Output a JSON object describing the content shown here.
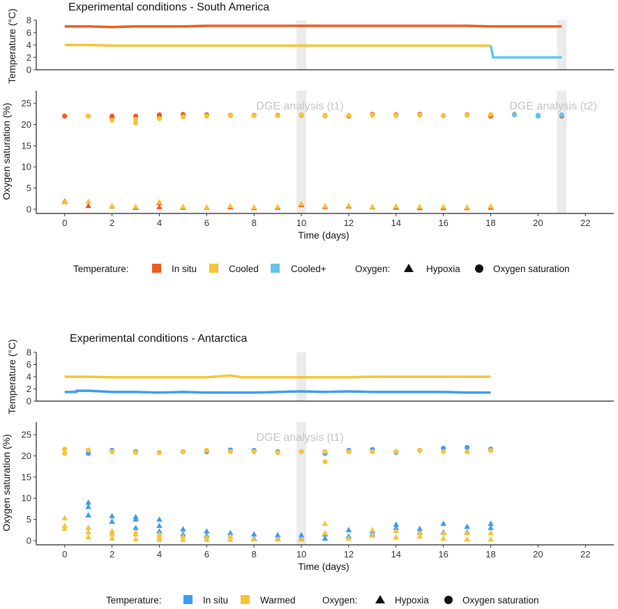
{
  "chart_data": [
    {
      "type": "line",
      "panel": "south-temp",
      "title": "Experimental conditions - South America",
      "xlabel": "",
      "ylabel": "Temperature (°C)",
      "xlim": [
        -1.2,
        23.2
      ],
      "ylim": [
        0,
        8
      ],
      "yticks": [
        0,
        2,
        4,
        6,
        8
      ],
      "series": [
        {
          "name": "In situ",
          "color": "#EE5A1F",
          "points": [
            [
              0,
              7.0
            ],
            [
              1,
              7.0
            ],
            [
              2,
              6.9
            ],
            [
              3,
              7.0
            ],
            [
              4,
              7.0
            ],
            [
              5,
              7.0
            ],
            [
              6,
              7.1
            ],
            [
              7,
              7.1
            ],
            [
              8,
              7.1
            ],
            [
              9,
              7.1
            ],
            [
              10,
              7.1
            ],
            [
              11,
              7.1
            ],
            [
              12,
              7.1
            ],
            [
              13,
              7.1
            ],
            [
              14,
              7.1
            ],
            [
              15,
              7.1
            ],
            [
              16,
              7.1
            ],
            [
              17,
              7.1
            ],
            [
              18,
              7.0
            ],
            [
              19,
              7.0
            ],
            [
              20,
              7.0
            ],
            [
              21,
              7.0
            ]
          ]
        },
        {
          "name": "Cooled",
          "color": "#F5C437",
          "points": [
            [
              0,
              4.0
            ],
            [
              1,
              4.0
            ],
            [
              2,
              3.9
            ],
            [
              3,
              3.9
            ],
            [
              4,
              3.9
            ],
            [
              5,
              3.9
            ],
            [
              6,
              3.9
            ],
            [
              7,
              3.9
            ],
            [
              8,
              3.9
            ],
            [
              9,
              3.9
            ],
            [
              10,
              3.9
            ],
            [
              11,
              3.9
            ],
            [
              12,
              3.9
            ],
            [
              13,
              3.9
            ],
            [
              14,
              3.9
            ],
            [
              15,
              3.9
            ],
            [
              16,
              3.9
            ],
            [
              17,
              3.9
            ],
            [
              18,
              3.9
            ]
          ]
        },
        {
          "name": "Cooled+",
          "color": "#62C3EE",
          "points": [
            [
              18.0,
              3.9
            ],
            [
              18.1,
              2.0
            ],
            [
              19,
              2.0
            ],
            [
              20,
              2.0
            ],
            [
              21,
              2.0
            ]
          ]
        }
      ],
      "highlights": [
        10,
        21
      ]
    },
    {
      "type": "scatter",
      "panel": "south-oxygen",
      "title": "",
      "xlabel": "Time (days)",
      "ylabel": "Oxygen saturation (%)",
      "xlim": [
        -1.2,
        23.2
      ],
      "ylim": [
        -1,
        28
      ],
      "xticks": [
        0,
        2,
        4,
        6,
        8,
        10,
        12,
        14,
        16,
        18,
        20,
        22
      ],
      "yticks": [
        0,
        5,
        10,
        15,
        20,
        25
      ],
      "annotations": [
        "DGE analysis (t1)",
        "DGE analysis (t2)"
      ],
      "highlights": [
        10,
        21
      ],
      "series": [
        {
          "name": "In situ - Oxygen saturation",
          "color": "#EE5A1F",
          "shape": "circle",
          "x": [
            0,
            1,
            2,
            2,
            3,
            4,
            4,
            5,
            6,
            7,
            8,
            9,
            10,
            10,
            11,
            12,
            13,
            14,
            15,
            16,
            17,
            18,
            19,
            20,
            21
          ],
          "y": [
            22.0,
            22.0,
            21.6,
            22.0,
            22.0,
            22.3,
            22.0,
            22.4,
            22.3,
            22.2,
            22.2,
            22.2,
            22.2,
            22.3,
            22.1,
            22.0,
            22.4,
            22.3,
            22.4,
            22.1,
            22.3,
            22.0,
            22.4,
            22.0,
            22.0
          ]
        },
        {
          "name": "Cooled - Oxygen saturation",
          "color": "#F5C437",
          "shape": "circle",
          "x": [
            1,
            2,
            3,
            3,
            4,
            5,
            6,
            7,
            8,
            9,
            10,
            11,
            12,
            13,
            14,
            15,
            16,
            17,
            18
          ],
          "y": [
            22.0,
            21.0,
            20.4,
            21.2,
            21.4,
            21.8,
            22.0,
            22.1,
            22.1,
            22.1,
            22.3,
            22.2,
            22.2,
            22.2,
            22.1,
            22.2,
            22.1,
            22.2,
            22.4
          ]
        },
        {
          "name": "Cooled+ - Oxygen saturation",
          "color": "#62C3EE",
          "shape": "circle",
          "x": [
            19,
            20,
            20,
            21
          ],
          "y": [
            22.3,
            22.0,
            22.2,
            22.3
          ]
        },
        {
          "name": "In situ - Hypoxia",
          "color": "#EE5A1F",
          "shape": "triangle",
          "x": [
            0,
            1,
            2,
            3,
            4,
            4,
            5,
            6,
            7,
            8,
            9,
            10,
            11,
            12,
            13,
            14,
            15,
            16,
            17,
            18
          ],
          "y": [
            1.9,
            0.8,
            0.7,
            0.4,
            1.5,
            0.5,
            0.4,
            0.4,
            0.5,
            0.3,
            0.4,
            1.0,
            0.6,
            0.7,
            0.5,
            0.4,
            0.3,
            0.3,
            0.3,
            0.4
          ]
        },
        {
          "name": "Cooled - Hypoxia",
          "color": "#F5C437",
          "shape": "triangle",
          "x": [
            0,
            1,
            2,
            3,
            4,
            5,
            6,
            7,
            8,
            9,
            10,
            11,
            12,
            13,
            14,
            15,
            16,
            17,
            18
          ],
          "y": [
            1.7,
            1.8,
            0.8,
            0.6,
            1.7,
            0.6,
            0.5,
            0.8,
            0.5,
            0.6,
            1.3,
            0.8,
            0.9,
            0.6,
            0.7,
            0.6,
            0.6,
            0.5,
            0.7
          ]
        }
      ]
    },
    {
      "type": "line",
      "panel": "antarctica-temp",
      "title": "Experimental conditions - Antarctica",
      "xlabel": "",
      "ylabel": "Temperature (°C)",
      "xlim": [
        -1.2,
        23.2
      ],
      "ylim": [
        0,
        8
      ],
      "yticks": [
        0,
        2,
        4,
        6,
        8
      ],
      "series": [
        {
          "name": "Warmed",
          "color": "#F5C437",
          "points": [
            [
              0,
              4.0
            ],
            [
              1,
              4.0
            ],
            [
              2,
              3.9
            ],
            [
              3,
              3.9
            ],
            [
              4,
              3.9
            ],
            [
              5,
              3.9
            ],
            [
              6,
              3.9
            ],
            [
              7,
              4.2
            ],
            [
              7.5,
              3.9
            ],
            [
              8,
              3.9
            ],
            [
              9,
              3.9
            ],
            [
              10,
              3.9
            ],
            [
              11,
              3.9
            ],
            [
              12,
              3.9
            ],
            [
              13,
              4.0
            ],
            [
              14,
              4.0
            ],
            [
              15,
              4.0
            ],
            [
              16,
              4.0
            ],
            [
              17,
              4.0
            ],
            [
              18,
              4.0
            ]
          ]
        },
        {
          "name": "In situ",
          "color": "#3D9BEF",
          "points": [
            [
              0,
              1.5
            ],
            [
              0.5,
              1.5
            ],
            [
              0.5,
              1.7
            ],
            [
              1,
              1.7
            ],
            [
              2,
              1.5
            ],
            [
              3,
              1.5
            ],
            [
              4,
              1.4
            ],
            [
              5,
              1.5
            ],
            [
              6,
              1.4
            ],
            [
              7,
              1.4
            ],
            [
              8,
              1.4
            ],
            [
              9,
              1.5
            ],
            [
              10,
              1.6
            ],
            [
              11,
              1.5
            ],
            [
              12,
              1.6
            ],
            [
              13,
              1.5
            ],
            [
              14,
              1.5
            ],
            [
              15,
              1.5
            ],
            [
              16,
              1.5
            ],
            [
              17,
              1.4
            ],
            [
              18,
              1.4
            ]
          ]
        }
      ],
      "highlights": [
        10
      ]
    },
    {
      "type": "scatter",
      "panel": "antarctica-oxygen",
      "title": "",
      "xlabel": "Time (days)",
      "ylabel": "Oxygen saturation (%)",
      "xlim": [
        -1.2,
        23.2
      ],
      "ylim": [
        -1,
        28
      ],
      "xticks": [
        0,
        2,
        4,
        6,
        8,
        10,
        12,
        14,
        16,
        18,
        20,
        22
      ],
      "yticks": [
        0,
        5,
        10,
        15,
        20,
        25
      ],
      "annotations": [
        "DGE analysis (t1)"
      ],
      "highlights": [
        10
      ],
      "series": [
        {
          "name": "In situ - Oxygen saturation",
          "color": "#3D9BEF",
          "shape": "circle",
          "x": [
            1,
            2,
            3,
            4,
            5,
            6,
            7,
            8,
            9,
            10,
            11,
            12,
            13,
            14,
            15,
            16,
            17,
            18
          ],
          "y": [
            20.6,
            21.3,
            21.0,
            20.8,
            21.0,
            21.0,
            21.4,
            21.3,
            21.0,
            21.0,
            20.6,
            21.3,
            21.5,
            20.8,
            21.3,
            21.8,
            22.0,
            21.6
          ]
        },
        {
          "name": "Warmed - Oxygen saturation",
          "color": "#F5C437",
          "shape": "circle",
          "x": [
            0,
            0,
            1,
            2,
            3,
            4,
            5,
            6,
            7,
            8,
            9,
            10,
            11,
            11,
            12,
            13,
            14,
            15,
            16,
            17,
            18
          ],
          "y": [
            21.6,
            20.6,
            21.4,
            21.0,
            20.8,
            20.8,
            21.0,
            21.3,
            21.0,
            21.0,
            20.8,
            21.0,
            21.0,
            18.6,
            21.0,
            21.0,
            21.0,
            21.3,
            21.0,
            21.0,
            21.3
          ]
        },
        {
          "name": "In situ - Hypoxia",
          "color": "#3D9BEF",
          "shape": "triangle",
          "x": [
            1,
            1,
            1,
            1,
            2,
            2,
            2,
            3,
            3,
            3,
            4,
            4,
            4,
            5,
            5,
            6,
            6,
            7,
            7,
            8,
            8,
            9,
            9,
            10,
            10,
            11,
            11,
            12,
            12,
            13,
            13,
            14,
            14,
            15,
            15,
            16,
            16,
            17,
            17,
            18,
            18
          ],
          "y": [
            9.0,
            8.0,
            6.0,
            3.0,
            5.8,
            4.5,
            2.2,
            5.6,
            5.0,
            3.0,
            5.0,
            3.5,
            2.2,
            2.7,
            1.5,
            2.2,
            1.2,
            1.8,
            1.0,
            1.5,
            0.5,
            1.3,
            0.5,
            1.3,
            0.5,
            1.5,
            0.5,
            2.5,
            1.0,
            2.3,
            1.5,
            3.8,
            3.0,
            2.8,
            2.0,
            4.0,
            2.0,
            3.3,
            2.0,
            4.0,
            3.0
          ]
        },
        {
          "name": "Warmed - Hypoxia",
          "color": "#F5C437",
          "shape": "triangle",
          "x": [
            0,
            0,
            0,
            1,
            1,
            1,
            2,
            2,
            2,
            3,
            3,
            3,
            4,
            4,
            4,
            5,
            5,
            6,
            6,
            7,
            7,
            8,
            9,
            10,
            11,
            11,
            12,
            13,
            13,
            14,
            14,
            15,
            15,
            16,
            16,
            17,
            17,
            18,
            18
          ],
          "y": [
            5.3,
            3.5,
            2.8,
            3.0,
            2.0,
            0.8,
            2.2,
            1.5,
            0.5,
            2.0,
            1.5,
            0.3,
            1.5,
            0.8,
            0.2,
            1.0,
            0.2,
            0.8,
            0.2,
            1.0,
            0.2,
            0.3,
            0.3,
            0.3,
            4.0,
            1.8,
            0.5,
            2.5,
            1.2,
            2.3,
            0.8,
            1.8,
            1.0,
            1.8,
            0.5,
            1.8,
            0.3,
            1.8,
            0.3
          ]
        }
      ]
    }
  ],
  "legends": {
    "south": {
      "temperature_label": "Temperature:",
      "temperature_items": [
        {
          "label": "In situ",
          "color": "#EE5A1F"
        },
        {
          "label": "Cooled",
          "color": "#F5C437"
        },
        {
          "label": "Cooled+",
          "color": "#62C3EE"
        }
      ],
      "oxygen_label": "Oxygen:",
      "oxygen_items": [
        {
          "label": "Hypoxia",
          "shape": "triangle"
        },
        {
          "label": "Oxygen saturation",
          "shape": "circle"
        }
      ]
    },
    "antarctica": {
      "temperature_label": "Temperature:",
      "temperature_items": [
        {
          "label": "In situ",
          "color": "#3D9BEF"
        },
        {
          "label": "Warmed",
          "color": "#F5C437"
        }
      ],
      "oxygen_label": "Oxygen:",
      "oxygen_items": [
        {
          "label": "Hypoxia",
          "shape": "triangle"
        },
        {
          "label": "Oxygen saturation",
          "shape": "circle"
        }
      ]
    }
  }
}
